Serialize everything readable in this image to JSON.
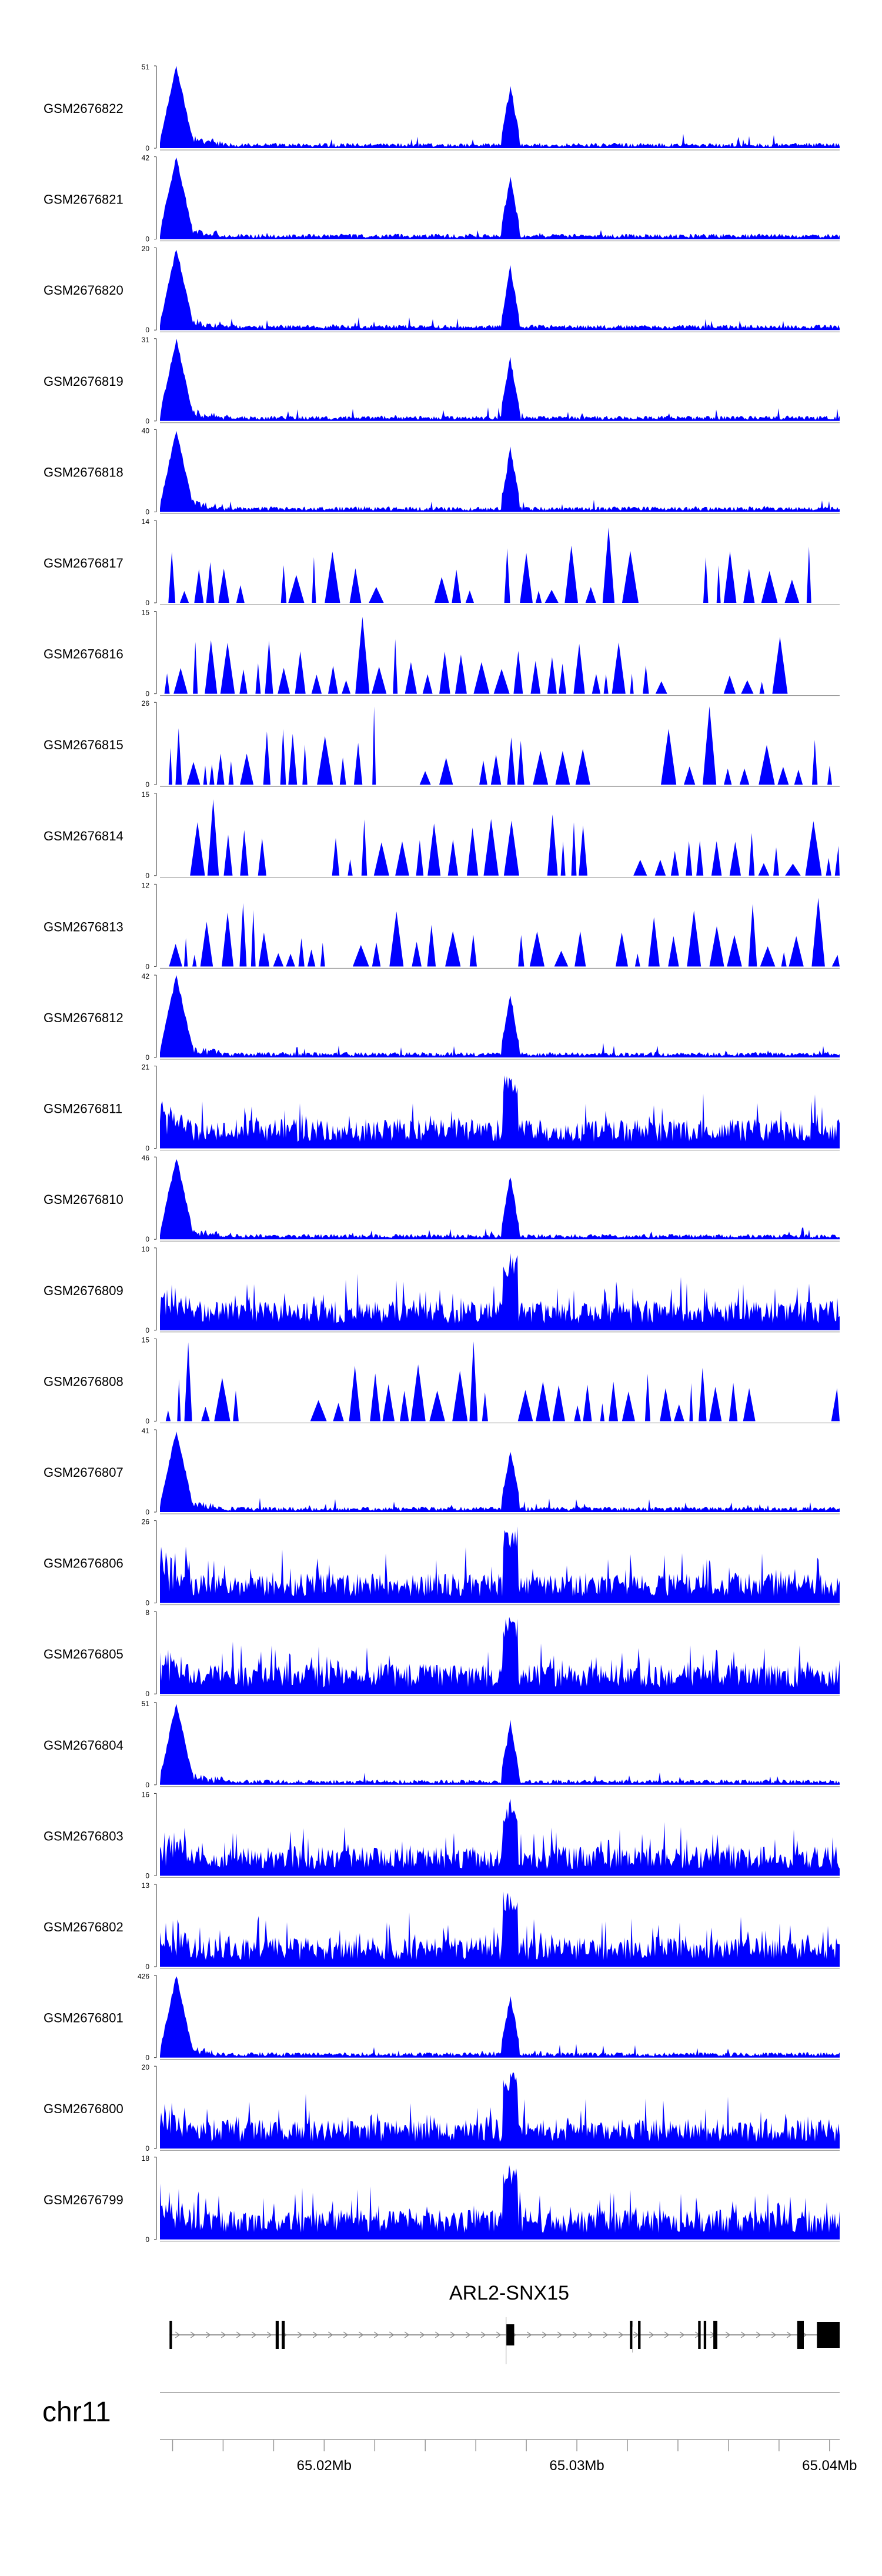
{
  "chart_data": {
    "type": "area",
    "title": "",
    "x_unit": "bp",
    "x_range": [
      65013500,
      65040400
    ],
    "series": [
      {
        "name": "GSM2676822",
        "ymax": 51,
        "ymin": "0"
      },
      {
        "name": "GSM2676821",
        "ymax": 42,
        "ymin": "0"
      },
      {
        "name": "GSM2676820",
        "ymax": 20,
        "ymin": "0"
      },
      {
        "name": "GSM2676819",
        "ymax": 31,
        "ymin": "0"
      },
      {
        "name": "GSM2676818",
        "ymax": 40,
        "ymin": "0"
      },
      {
        "name": "GSM2676817",
        "ymax": 14,
        "ymin": "0"
      },
      {
        "name": "GSM2676816",
        "ymax": 15,
        "ymin": "0"
      },
      {
        "name": "GSM2676815",
        "ymax": 26,
        "ymin": "0"
      },
      {
        "name": "GSM2676814",
        "ymax": 15,
        "ymin": "0"
      },
      {
        "name": "GSM2676813",
        "ymax": 12,
        "ymin": "0"
      },
      {
        "name": "GSM2676812",
        "ymax": 42,
        "ymin": "0"
      },
      {
        "name": "GSM2676811",
        "ymax": 21,
        "ymin": "0"
      },
      {
        "name": "GSM2676810",
        "ymax": 46,
        "ymin": "0"
      },
      {
        "name": "GSM2676809",
        "ymax": 10,
        "ymin": "0"
      },
      {
        "name": "GSM2676808",
        "ymax": 15,
        "ymin": "0"
      },
      {
        "name": "GSM2676807",
        "ymax": 41,
        "ymin": "0"
      },
      {
        "name": "GSM2676806",
        "ymax": 26,
        "ymin": "0"
      },
      {
        "name": "GSM2676805",
        "ymax": 8,
        "ymin": "0"
      },
      {
        "name": "GSM2676804",
        "ymax": 51,
        "ymin": "0"
      },
      {
        "name": "GSM2676803",
        "ymax": 16,
        "ymin": "0"
      },
      {
        "name": "GSM2676802",
        "ymax": 13,
        "ymin": "0"
      },
      {
        "name": "GSM2676801",
        "ymax": 426,
        "ymin": "0"
      },
      {
        "name": "GSM2676800",
        "ymax": 20,
        "ymin": "0"
      },
      {
        "name": "GSM2676799",
        "ymax": 18,
        "ymin": "0"
      }
    ],
    "gene_track": {
      "gene": "ARL2-SNX15",
      "strand": "+",
      "start": 65013880,
      "end": 65040400,
      "exons": [
        [
          65013880,
          65013980
        ],
        [
          65018080,
          65018200
        ],
        [
          65018320,
          65018440
        ],
        [
          65027200,
          65027520
        ],
        [
          65032100,
          65032200
        ],
        [
          65032420,
          65032520
        ],
        [
          65034800,
          65034900
        ],
        [
          65035020,
          65035120
        ],
        [
          65035400,
          65035560
        ],
        [
          65038720,
          65038980
        ],
        [
          65039500,
          65040400
        ]
      ]
    },
    "axis": {
      "chromosome": "chr11",
      "tick_labels": [
        "65.02Mb",
        "65.03Mb",
        "65.04Mb"
      ],
      "labeled_ticks": [
        65020000,
        65030000,
        65040000
      ],
      "minor_tick_step": 2000
    }
  }
}
